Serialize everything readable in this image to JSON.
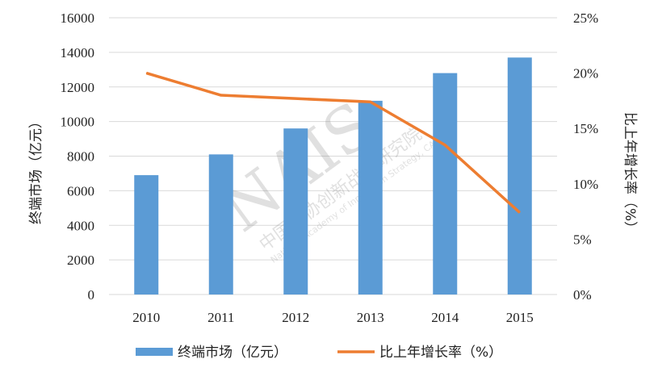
{
  "chart_data": {
    "type": "bar",
    "categories": [
      "2010",
      "2011",
      "2012",
      "2013",
      "2014",
      "2015"
    ],
    "series": [
      {
        "name": "终端市场（亿元）",
        "type": "bar",
        "axis": "left",
        "color": "#5b9bd5",
        "values": [
          6900,
          8100,
          9600,
          11200,
          12800,
          13700
        ]
      },
      {
        "name": "比上年增长率（%）",
        "type": "line",
        "axis": "right",
        "color": "#ed7d31",
        "values": [
          20.0,
          18.0,
          17.7,
          17.4,
          13.5,
          7.4
        ]
      }
    ],
    "ylabel": "终端市场（亿元）",
    "y2label": "比上年增长率（%）",
    "ylim": [
      0,
      16000
    ],
    "yticks": [
      "0",
      "2000",
      "4000",
      "6000",
      "8000",
      "10000",
      "12000",
      "14000",
      "16000"
    ],
    "y2lim": [
      0,
      25
    ],
    "y2ticks": [
      "0%",
      "5%",
      "10%",
      "15%",
      "20%",
      "25%"
    ],
    "grid": true,
    "legend": "bottom",
    "watermark": "NAIS 中国科协创新战略研究院 National Academy of Innovation Strategy, CAST"
  }
}
